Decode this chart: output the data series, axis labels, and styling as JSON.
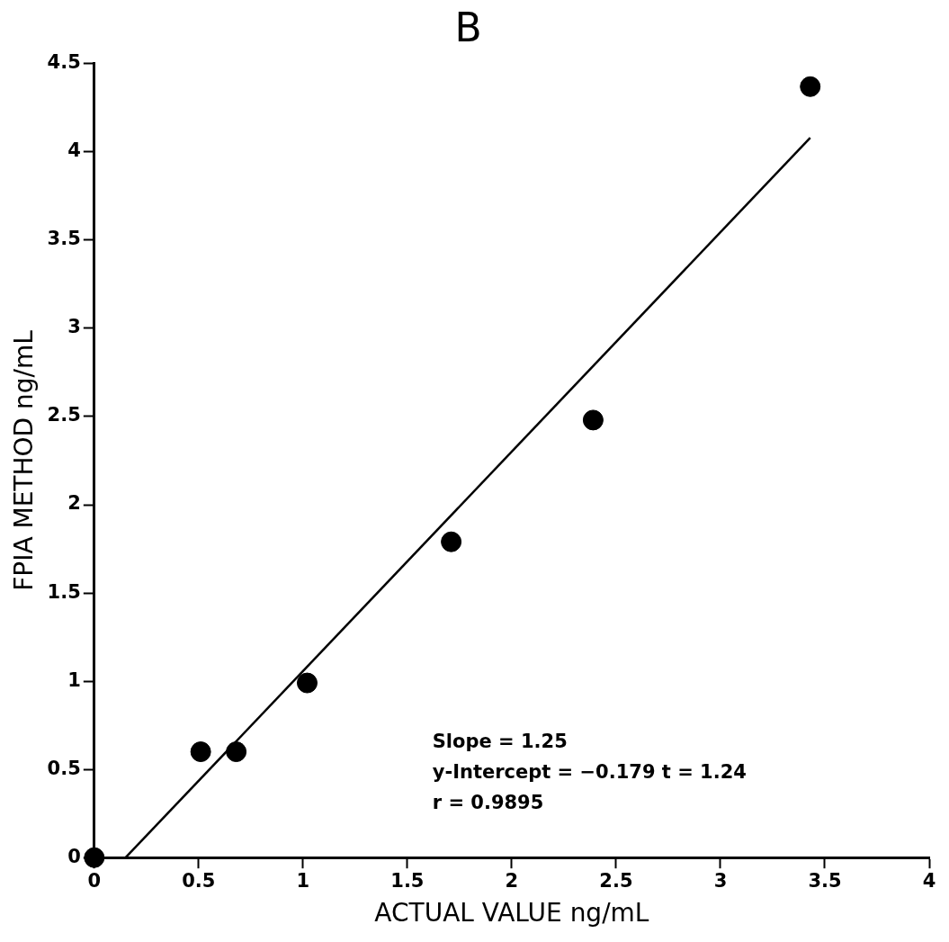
{
  "chart_data": {
    "type": "scatter",
    "title": "B",
    "xlabel": "ACTUAL VALUE ng/mL",
    "ylabel": "FPIA METHOD ng/mL",
    "xlim": [
      0,
      4
    ],
    "xticks": [
      0,
      0.5,
      1,
      1.5,
      2,
      2.5,
      3,
      3.5,
      4
    ],
    "ylim": [
      0,
      4.5
    ],
    "yticks": [
      0,
      0.5,
      1,
      1.5,
      2,
      2.5,
      3,
      3.5,
      4,
      4.5
    ],
    "grid": false,
    "legend": false,
    "marker": "circle",
    "series": [
      {
        "color": "#000000",
        "x": [
          0,
          0.51,
          0.68,
          1.02,
          1.71,
          2.39,
          3.43
        ],
        "values": [
          0,
          0.6,
          0.6,
          0.99,
          1.79,
          2.48,
          4.37
        ]
      },
      {
        "type": "line",
        "color": "#000000",
        "marker": "none",
        "line_style": "solid",
        "x": [
          0.15,
          3.43
        ],
        "values": [
          0,
          4.08
        ]
      }
    ],
    "annotations": [
      "Slope = 1.25",
      "y-Intercept = −0.179 t = 1.24",
      "r = 0.9895"
    ]
  }
}
